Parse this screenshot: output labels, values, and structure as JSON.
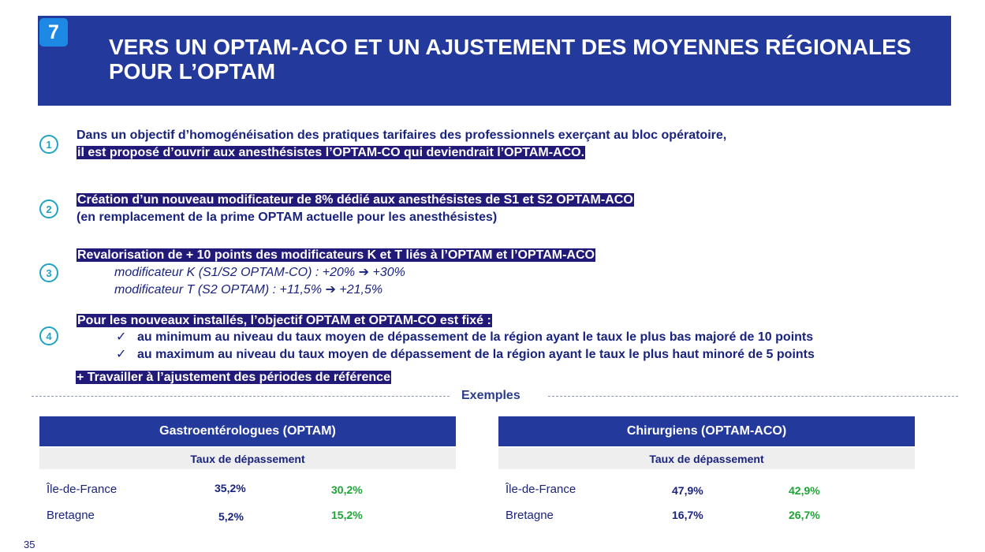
{
  "header": {
    "badge": "7",
    "title_line1": "VERS UN OPTAM-ACO ET UN AJUSTEMENT DES MOYENNES RÉGIONALES",
    "title_line2": "POUR L’OPTAM"
  },
  "points": [
    {
      "number": "1",
      "line1": "Dans un objectif d’homogénéisation des pratiques tarifaires des professionnels exerçant au bloc opératoire,",
      "line2": "il est proposé d’ouvrir aux anesthésistes l’OPTAM-CO qui deviendrait l’OPTAM-ACO."
    },
    {
      "number": "2",
      "line1": "Création d’un nouveau modificateur de 8% dédié aux anesthésistes de S1 et S2 OPTAM-ACO",
      "line2": "(en remplacement de la prime OPTAM actuelle pour les anesthésistes)"
    },
    {
      "number": "3",
      "line1": "Revalorisation de + 10 points des modificateurs K et T liés à l’OPTAM et l’OPTAM-ACO",
      "sub1": "modificateur K (S1/S2 OPTAM-CO) : +20%",
      "sub1_after": "+30%",
      "sub2": "modificateur T (S2 OPTAM) : +11,5%",
      "sub2_after": "+21,5%",
      "arrow": "➔"
    },
    {
      "number": "4",
      "line1": "Pour les nouveaux installés, l’objectif OPTAM et OPTAM-CO est fixé :",
      "check": "✓",
      "bullet1": "au minimum au niveau du taux moyen de dépassement de la région ayant le taux le plus bas majoré de 10 points",
      "bullet2": "au maximum au niveau du taux moyen de dépassement de la région ayant le taux le plus haut minoré de 5 points"
    }
  ],
  "extra": "+ Travailler à l’ajustement des périodes de référence",
  "examples_label": "Exemples",
  "tables": [
    {
      "title": "Gastroentérologues (OPTAM)",
      "subtitle": "Taux de dépassement",
      "rows": [
        {
          "region": "Île-de-France",
          "current": "35,2%",
          "target": "30,2%"
        },
        {
          "region": "Bretagne",
          "current": "5,2%",
          "target": "15,2%"
        }
      ]
    },
    {
      "title": "Chirurgiens (OPTAM-ACO)",
      "subtitle": "Taux de dépassement",
      "rows": [
        {
          "region": "Île-de-France",
          "current": "47,9%",
          "target": "42,9%"
        },
        {
          "region": "Bretagne",
          "current": "16,7%",
          "target": "26,7%"
        }
      ]
    }
  ],
  "page_number": "35",
  "colors": {
    "header_bg": "#233a9c",
    "badge_bg": "#1e88e5",
    "highlight": "#221a78",
    "green": "#1ea536",
    "circle": "#1fa3c6"
  }
}
